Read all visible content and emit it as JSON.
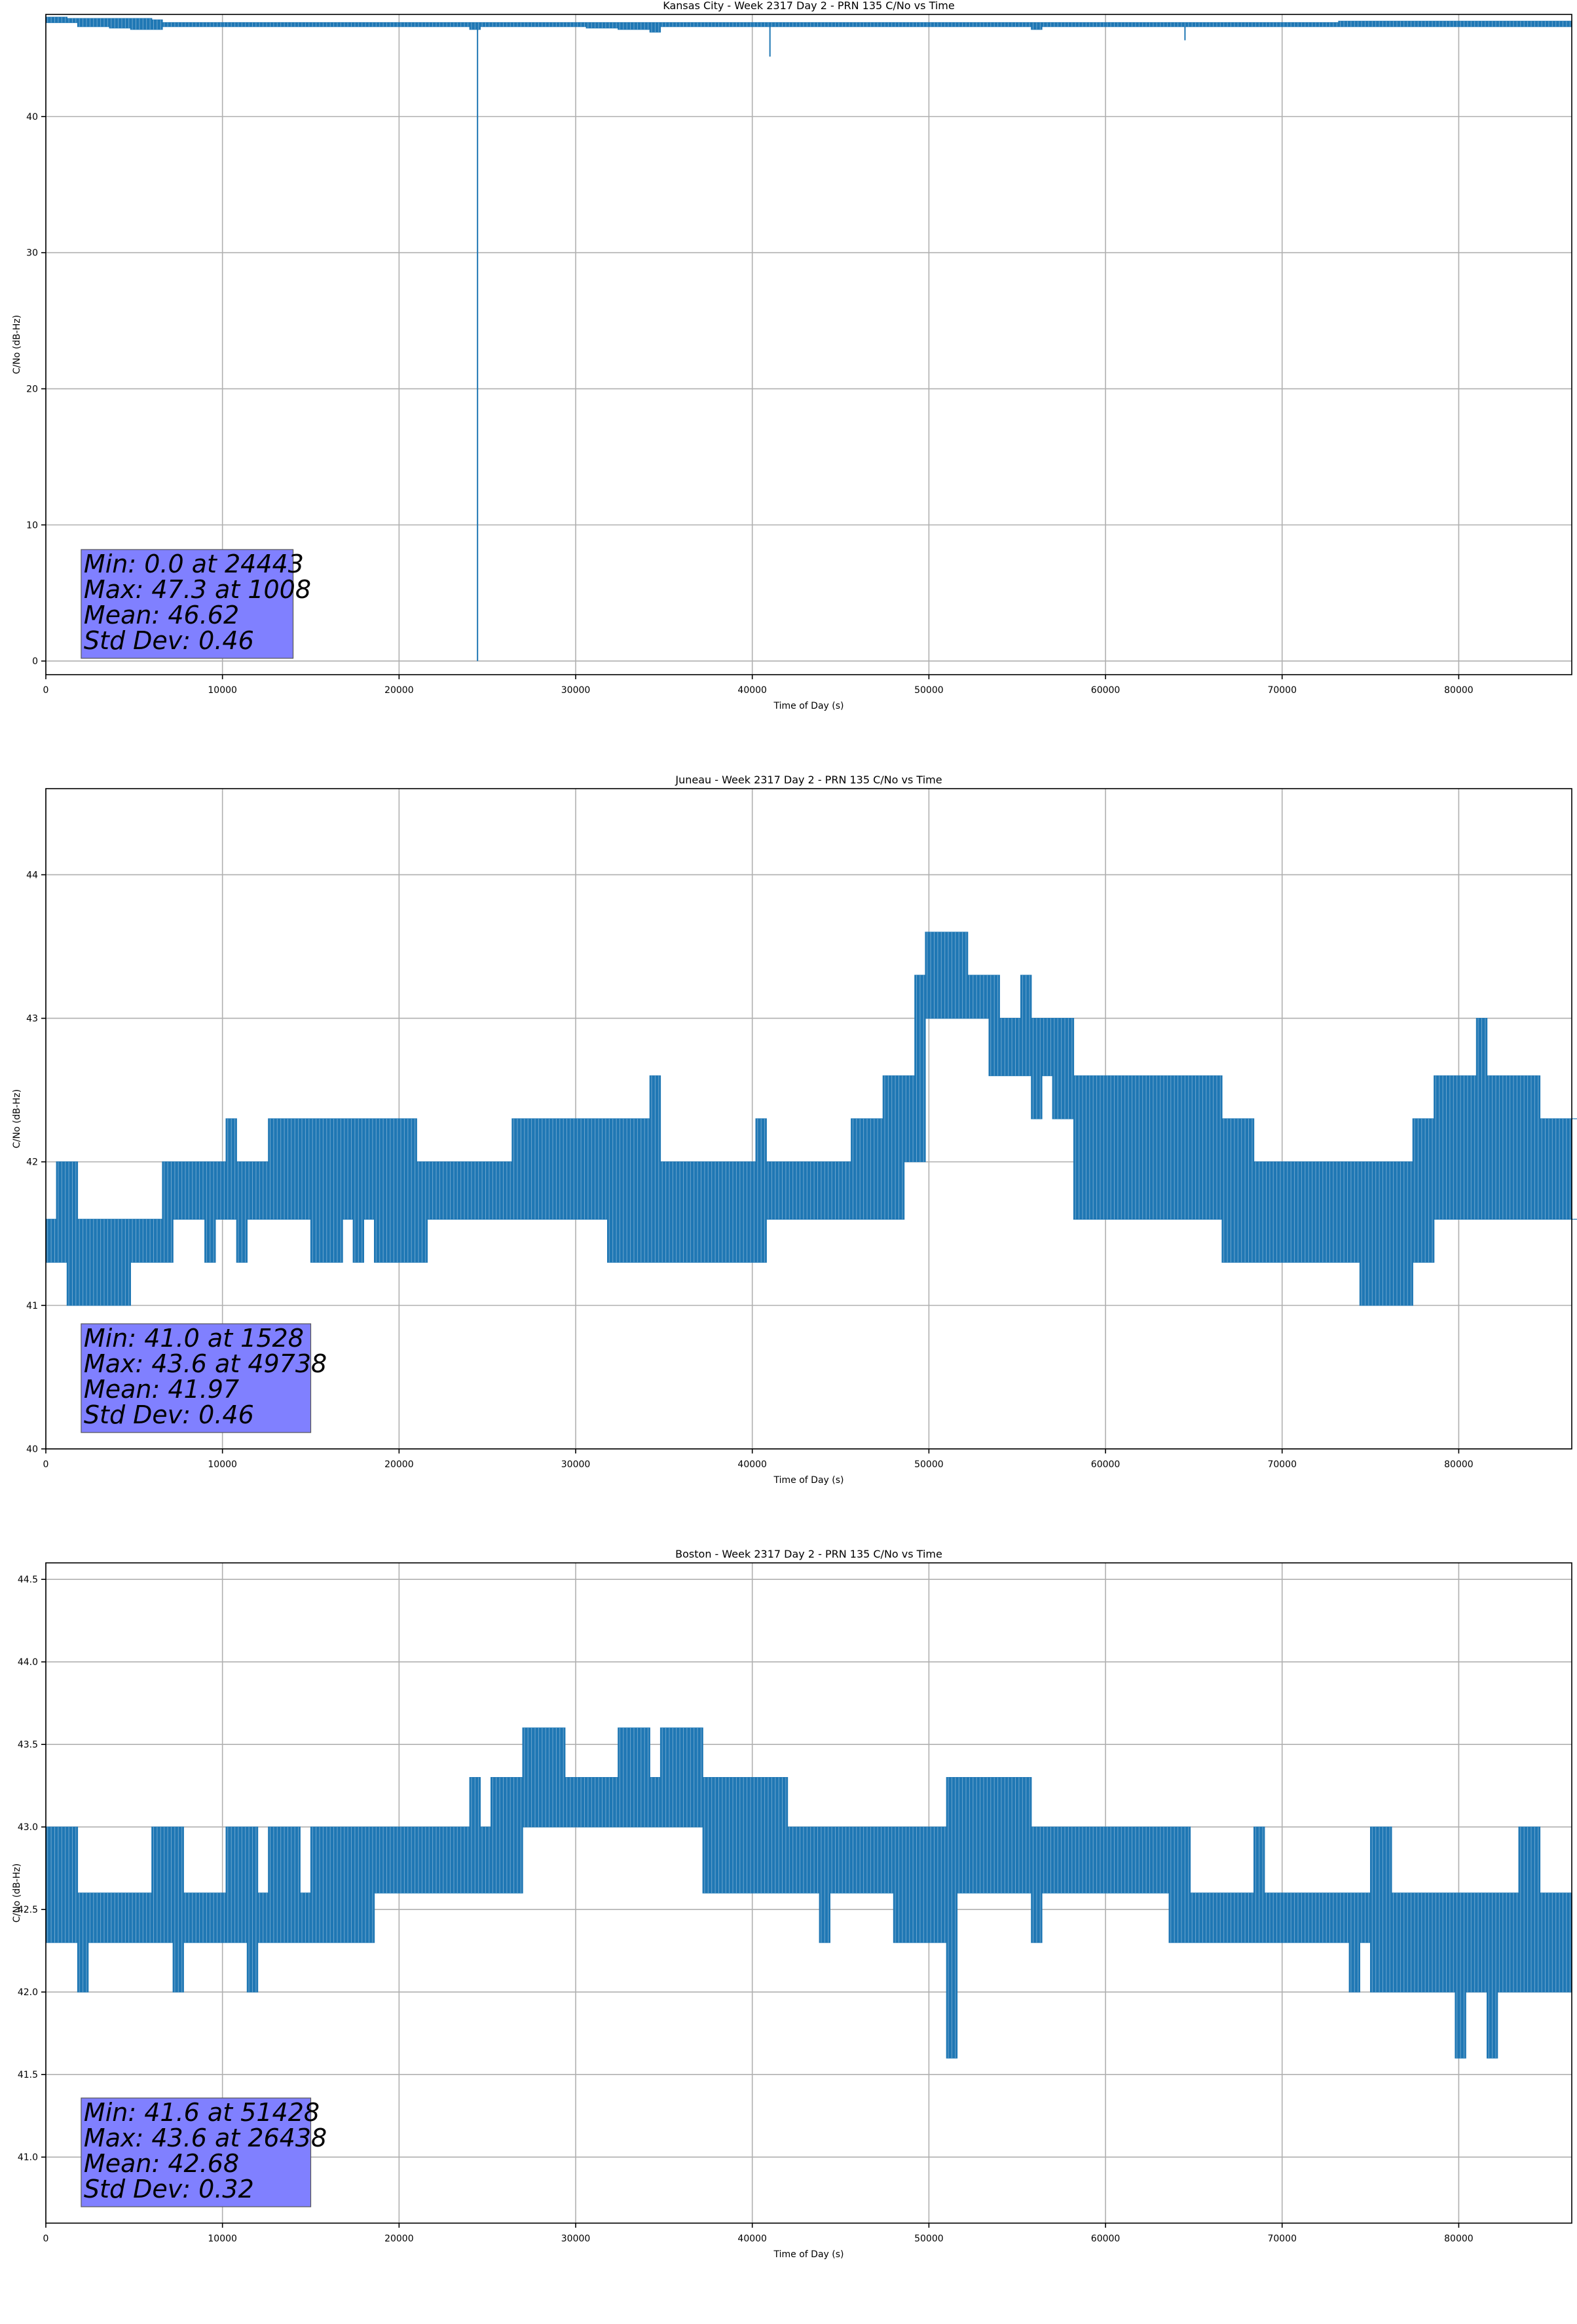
{
  "chart_data": [
    {
      "type": "line",
      "title": "Kansas City - Week 2317 Day 2 - PRN 135 C/No vs Time",
      "xlabel": "Time of Day (s)",
      "ylabel": "C/No (dB-Hz)",
      "xlim": [
        0,
        86400
      ],
      "ylim": [
        -1,
        47.5
      ],
      "xticks": [
        0,
        10000,
        20000,
        30000,
        40000,
        50000,
        60000,
        70000,
        80000
      ],
      "xtick_labels": [
        "0",
        "10000",
        "20000",
        "30000",
        "40000",
        "50000",
        "60000",
        "70000",
        "80000"
      ],
      "yticks": [
        0,
        10,
        20,
        30,
        40
      ],
      "ytick_labels": [
        "0",
        "10",
        "20",
        "30",
        "40"
      ],
      "grid": true,
      "line_color": "#1f77b4",
      "box_color": "#8080ff",
      "stats_lines": [
        "Min: 0.0 at 24443",
        "Max: 47.3 at 1008",
        "Mean: 46.62",
        "Std Dev: 0.46"
      ],
      "series": [
        {
          "name": "C/No",
          "step": 600,
          "low": [
            46.9,
            46.9,
            46.9,
            46.6,
            46.6,
            46.6,
            46.5,
            46.5,
            46.4,
            46.4,
            46.4,
            46.6,
            46.6,
            46.6,
            46.6,
            46.6,
            46.6,
            46.6,
            46.6,
            46.6,
            46.6,
            46.6,
            46.6,
            46.6,
            46.6,
            46.6,
            46.6,
            46.6,
            46.6,
            46.6,
            46.6,
            46.6,
            46.6,
            46.6,
            46.6,
            46.6,
            46.6,
            46.6,
            46.6,
            46.6,
            46.4,
            46.6,
            46.6,
            46.6,
            46.6,
            46.6,
            46.6,
            46.6,
            46.6,
            46.6,
            46.6,
            46.5,
            46.5,
            46.5,
            46.4,
            46.4,
            46.4,
            46.2,
            46.6,
            46.6,
            46.6,
            46.6,
            46.6,
            46.6,
            46.6,
            46.6,
            46.6,
            46.6,
            46.6,
            46.6,
            46.6,
            46.6,
            46.6,
            46.6,
            46.6,
            46.6,
            46.6,
            46.6,
            46.6,
            46.6,
            46.6,
            46.6,
            46.6,
            46.6,
            46.6,
            46.6,
            46.6,
            46.6,
            46.6,
            46.6,
            46.6,
            46.6,
            46.6,
            46.4,
            46.6,
            46.6,
            46.6,
            46.6,
            46.6,
            46.6,
            46.6,
            46.6,
            46.6,
            46.6,
            46.6,
            46.6,
            46.6,
            46.6,
            46.6,
            46.6,
            46.6,
            46.6,
            46.6,
            46.6,
            46.6,
            46.6,
            46.6,
            46.6,
            46.6,
            46.6,
            46.6,
            46.6,
            46.6,
            46.6,
            46.6,
            46.6,
            46.6,
            46.6,
            46.6,
            46.6,
            46.6,
            46.6,
            46.6,
            46.6,
            46.6,
            46.6,
            46.6,
            46.6,
            46.6,
            46.6,
            46.6,
            46.6,
            46.6,
            46.6
          ],
          "high": [
            47.3,
            47.3,
            47.2,
            47.2,
            47.2,
            47.2,
            47.2,
            47.2,
            47.2,
            47.2,
            47.1,
            46.9,
            46.9,
            46.9,
            46.9,
            46.9,
            46.9,
            46.9,
            46.9,
            46.9,
            46.9,
            46.9,
            46.9,
            46.9,
            46.9,
            46.9,
            46.9,
            46.9,
            46.9,
            46.9,
            46.9,
            46.9,
            46.9,
            46.9,
            46.9,
            46.9,
            46.9,
            46.9,
            46.9,
            46.9,
            46.9,
            46.9,
            46.9,
            46.9,
            46.9,
            46.9,
            46.9,
            46.9,
            46.9,
            46.9,
            46.9,
            46.9,
            46.9,
            46.9,
            46.9,
            46.9,
            46.9,
            46.9,
            46.9,
            46.9,
            46.9,
            46.9,
            46.9,
            46.9,
            46.9,
            46.9,
            46.9,
            46.9,
            46.9,
            46.9,
            46.9,
            46.9,
            46.9,
            46.9,
            46.9,
            46.9,
            46.9,
            46.9,
            46.9,
            46.9,
            46.9,
            46.9,
            46.9,
            46.9,
            46.9,
            46.9,
            46.9,
            46.9,
            46.9,
            46.9,
            46.9,
            46.9,
            46.9,
            46.9,
            46.9,
            46.9,
            46.9,
            46.9,
            46.9,
            46.9,
            46.9,
            46.9,
            46.9,
            46.9,
            46.9,
            46.9,
            46.9,
            46.9,
            46.9,
            46.9,
            46.9,
            46.9,
            46.9,
            46.9,
            46.9,
            46.9,
            46.9,
            46.9,
            46.9,
            46.9,
            46.9,
            46.9,
            47.0,
            47.0,
            47.0,
            47.0,
            47.0,
            47.0,
            47.0,
            47.0,
            47.0,
            47.0,
            47.0,
            47.0,
            47.0,
            47.0,
            47.0,
            47.0,
            47.0,
            47.0,
            47.0,
            47.0,
            47.0,
            47.0
          ]
        }
      ],
      "spikes": [
        {
          "x": 24443,
          "y": 0.0
        },
        {
          "x": 41000,
          "y": 44.4
        },
        {
          "x": 64500,
          "y": 45.6
        }
      ]
    },
    {
      "type": "line",
      "title": "Juneau - Week 2317 Day 2 - PRN 135 C/No vs Time",
      "xlabel": "Time of Day (s)",
      "ylabel": "C/No (dB-Hz)",
      "xlim": [
        0,
        86400
      ],
      "ylim": [
        40,
        44.6
      ],
      "xticks": [
        0,
        10000,
        20000,
        30000,
        40000,
        50000,
        60000,
        70000,
        80000
      ],
      "xtick_labels": [
        "0",
        "10000",
        "20000",
        "30000",
        "40000",
        "50000",
        "60000",
        "70000",
        "80000"
      ],
      "yticks": [
        40,
        41,
        42,
        43,
        44
      ],
      "ytick_labels": [
        "40",
        "41",
        "42",
        "43",
        "44"
      ],
      "grid": true,
      "line_color": "#1f77b4",
      "box_color": "#8080ff",
      "stats_lines": [
        "Min: 41.0 at 1528",
        "Max: 43.6 at 49738",
        "Mean: 41.97",
        "Std Dev: 0.46"
      ],
      "series": [
        {
          "name": "C/No",
          "step": 600,
          "low": [
            41.3,
            41.3,
            41.0,
            41.0,
            41.0,
            41.0,
            41.0,
            41.0,
            41.3,
            41.3,
            41.3,
            41.3,
            41.6,
            41.6,
            41.6,
            41.3,
            41.6,
            41.6,
            41.3,
            41.6,
            41.6,
            41.6,
            41.6,
            41.6,
            41.6,
            41.3,
            41.3,
            41.3,
            41.6,
            41.3,
            41.6,
            41.3,
            41.3,
            41.3,
            41.3,
            41.3,
            41.6,
            41.6,
            41.6,
            41.6,
            41.6,
            41.6,
            41.6,
            41.6,
            41.6,
            41.6,
            41.6,
            41.6,
            41.6,
            41.6,
            41.6,
            41.6,
            41.6,
            41.3,
            41.3,
            41.3,
            41.3,
            41.3,
            41.3,
            41.3,
            41.3,
            41.3,
            41.3,
            41.3,
            41.3,
            41.3,
            41.3,
            41.3,
            41.6,
            41.6,
            41.6,
            41.6,
            41.6,
            41.6,
            41.6,
            41.6,
            41.6,
            41.6,
            41.6,
            41.6,
            41.6,
            42.0,
            42.0,
            43.0,
            43.0,
            43.0,
            43.0,
            43.0,
            43.0,
            42.6,
            42.6,
            42.6,
            42.6,
            42.3,
            42.6,
            42.3,
            42.3,
            41.6,
            41.6,
            41.6,
            41.6,
            41.6,
            41.6,
            41.6,
            41.6,
            41.6,
            41.6,
            41.6,
            41.6,
            41.6,
            41.6,
            41.3,
            41.3,
            41.3,
            41.3,
            41.3,
            41.3,
            41.3,
            41.3,
            41.3,
            41.3,
            41.3,
            41.3,
            41.3,
            41.0,
            41.0,
            41.0,
            41.0,
            41.0,
            41.3,
            41.3,
            41.6,
            41.6,
            41.6,
            41.6,
            41.6,
            41.6,
            41.6,
            41.6,
            41.6,
            41.6,
            41.6,
            41.6,
            41.6,
            41.6,
            41.6
          ],
          "high": [
            41.6,
            42.0,
            42.0,
            41.6,
            41.6,
            41.6,
            41.6,
            41.6,
            41.6,
            41.6,
            41.6,
            42.0,
            42.0,
            42.0,
            42.0,
            42.0,
            42.0,
            42.3,
            42.0,
            42.0,
            42.0,
            42.3,
            42.3,
            42.3,
            42.3,
            42.3,
            42.3,
            42.3,
            42.3,
            42.3,
            42.3,
            42.3,
            42.3,
            42.3,
            42.3,
            42.0,
            42.0,
            42.0,
            42.0,
            42.0,
            42.0,
            42.0,
            42.0,
            42.0,
            42.3,
            42.3,
            42.3,
            42.3,
            42.3,
            42.3,
            42.3,
            42.3,
            42.3,
            42.3,
            42.3,
            42.3,
            42.3,
            42.6,
            42.0,
            42.0,
            42.0,
            42.0,
            42.0,
            42.0,
            42.0,
            42.0,
            42.0,
            42.3,
            42.0,
            42.0,
            42.0,
            42.0,
            42.0,
            42.0,
            42.0,
            42.0,
            42.3,
            42.3,
            42.3,
            42.6,
            42.6,
            42.6,
            43.3,
            43.6,
            43.6,
            43.6,
            43.6,
            43.3,
            43.3,
            43.3,
            43.0,
            43.0,
            43.3,
            43.0,
            43.0,
            43.0,
            43.0,
            42.6,
            42.6,
            42.6,
            42.6,
            42.6,
            42.6,
            42.6,
            42.6,
            42.6,
            42.6,
            42.6,
            42.6,
            42.6,
            42.6,
            42.3,
            42.3,
            42.3,
            42.0,
            42.0,
            42.0,
            42.0,
            42.0,
            42.0,
            42.0,
            42.0,
            42.0,
            42.0,
            42.0,
            42.0,
            42.0,
            42.0,
            42.0,
            42.3,
            42.3,
            42.6,
            42.6,
            42.6,
            42.6,
            43.0,
            42.6,
            42.6,
            42.6,
            42.6,
            42.6,
            42.3,
            42.3,
            42.3,
            42.3,
            42.3
          ]
        }
      ],
      "spikes": []
    },
    {
      "type": "line",
      "title": "Boston - Week 2317 Day 2 - PRN 135 C/No vs Time",
      "xlabel": "Time of Day (s)",
      "ylabel": "C/No (dB-Hz)",
      "xlim": [
        0,
        86400
      ],
      "ylim": [
        40.6,
        44.6
      ],
      "xticks": [
        0,
        10000,
        20000,
        30000,
        40000,
        50000,
        60000,
        70000,
        80000
      ],
      "xtick_labels": [
        "0",
        "10000",
        "20000",
        "30000",
        "40000",
        "50000",
        "60000",
        "70000",
        "80000"
      ],
      "yticks": [
        41.0,
        41.5,
        42.0,
        42.5,
        43.0,
        43.5,
        44.0,
        44.5
      ],
      "ytick_labels": [
        "41.0",
        "41.5",
        "42.0",
        "42.5",
        "43.0",
        "43.5",
        "44.0",
        "44.5"
      ],
      "grid": true,
      "line_color": "#1f77b4",
      "box_color": "#8080ff",
      "stats_lines": [
        "Min: 41.6 at 51428",
        "Max: 43.6 at 26438",
        "Mean: 42.68",
        "Std Dev: 0.32"
      ],
      "series": [
        {
          "name": "C/No",
          "step": 600,
          "low": [
            42.3,
            42.3,
            42.3,
            42.0,
            42.3,
            42.3,
            42.3,
            42.3,
            42.3,
            42.3,
            42.3,
            42.3,
            42.0,
            42.3,
            42.3,
            42.3,
            42.3,
            42.3,
            42.3,
            42.0,
            42.3,
            42.3,
            42.3,
            42.3,
            42.3,
            42.3,
            42.3,
            42.3,
            42.3,
            42.3,
            42.3,
            42.6,
            42.6,
            42.6,
            42.6,
            42.6,
            42.6,
            42.6,
            42.6,
            42.6,
            42.6,
            42.6,
            42.6,
            42.6,
            42.6,
            43.0,
            43.0,
            43.0,
            43.0,
            43.0,
            43.0,
            43.0,
            43.0,
            43.0,
            43.0,
            43.0,
            43.0,
            43.0,
            43.0,
            43.0,
            43.0,
            43.0,
            42.6,
            42.6,
            42.6,
            42.6,
            42.6,
            42.6,
            42.6,
            42.6,
            42.6,
            42.6,
            42.6,
            42.3,
            42.6,
            42.6,
            42.6,
            42.6,
            42.6,
            42.6,
            42.3,
            42.3,
            42.3,
            42.3,
            42.3,
            41.6,
            42.6,
            42.6,
            42.6,
            42.6,
            42.6,
            42.6,
            42.6,
            42.3,
            42.6,
            42.6,
            42.6,
            42.6,
            42.6,
            42.6,
            42.6,
            42.6,
            42.6,
            42.6,
            42.6,
            42.6,
            42.3,
            42.3,
            42.3,
            42.3,
            42.3,
            42.3,
            42.3,
            42.3,
            42.3,
            42.3,
            42.3,
            42.3,
            42.3,
            42.3,
            42.3,
            42.3,
            42.3,
            42.0,
            42.3,
            42.0,
            42.0,
            42.0,
            42.0,
            42.0,
            42.0,
            42.0,
            42.0,
            41.6,
            42.0,
            42.0,
            41.6,
            42.0,
            42.0,
            42.0,
            42.0,
            42.0,
            42.0,
            42.0,
            42.0
          ],
          "high": [
            43.0,
            43.0,
            43.0,
            42.6,
            42.6,
            42.6,
            42.6,
            42.6,
            42.6,
            42.6,
            43.0,
            43.0,
            43.0,
            42.6,
            42.6,
            42.6,
            42.6,
            43.0,
            43.0,
            43.0,
            42.6,
            43.0,
            43.0,
            43.0,
            42.6,
            43.0,
            43.0,
            43.0,
            43.0,
            43.0,
            43.0,
            43.0,
            43.0,
            43.0,
            43.0,
            43.0,
            43.0,
            43.0,
            43.0,
            43.0,
            43.3,
            43.0,
            43.3,
            43.3,
            43.3,
            43.6,
            43.6,
            43.6,
            43.6,
            43.3,
            43.3,
            43.3,
            43.3,
            43.3,
            43.6,
            43.6,
            43.6,
            43.3,
            43.6,
            43.6,
            43.6,
            43.6,
            43.3,
            43.3,
            43.3,
            43.3,
            43.3,
            43.3,
            43.3,
            43.3,
            43.0,
            43.0,
            43.0,
            43.0,
            43.0,
            43.0,
            43.0,
            43.0,
            43.0,
            43.0,
            43.0,
            43.0,
            43.0,
            43.0,
            43.0,
            43.3,
            43.3,
            43.3,
            43.3,
            43.3,
            43.3,
            43.3,
            43.3,
            43.0,
            43.0,
            43.0,
            43.0,
            43.0,
            43.0,
            43.0,
            43.0,
            43.0,
            43.0,
            43.0,
            43.0,
            43.0,
            43.0,
            43.0,
            42.6,
            42.6,
            42.6,
            42.6,
            42.6,
            42.6,
            43.0,
            42.6,
            42.6,
            42.6,
            42.6,
            42.6,
            42.6,
            42.6,
            42.6,
            42.6,
            42.6,
            43.0,
            43.0,
            42.6,
            42.6,
            42.6,
            42.6,
            42.6,
            42.6,
            42.6,
            42.6,
            42.6,
            42.6,
            42.6,
            42.6,
            43.0,
            43.0,
            42.6,
            42.6,
            42.6,
            42.6
          ]
        }
      ],
      "spikes": []
    }
  ]
}
